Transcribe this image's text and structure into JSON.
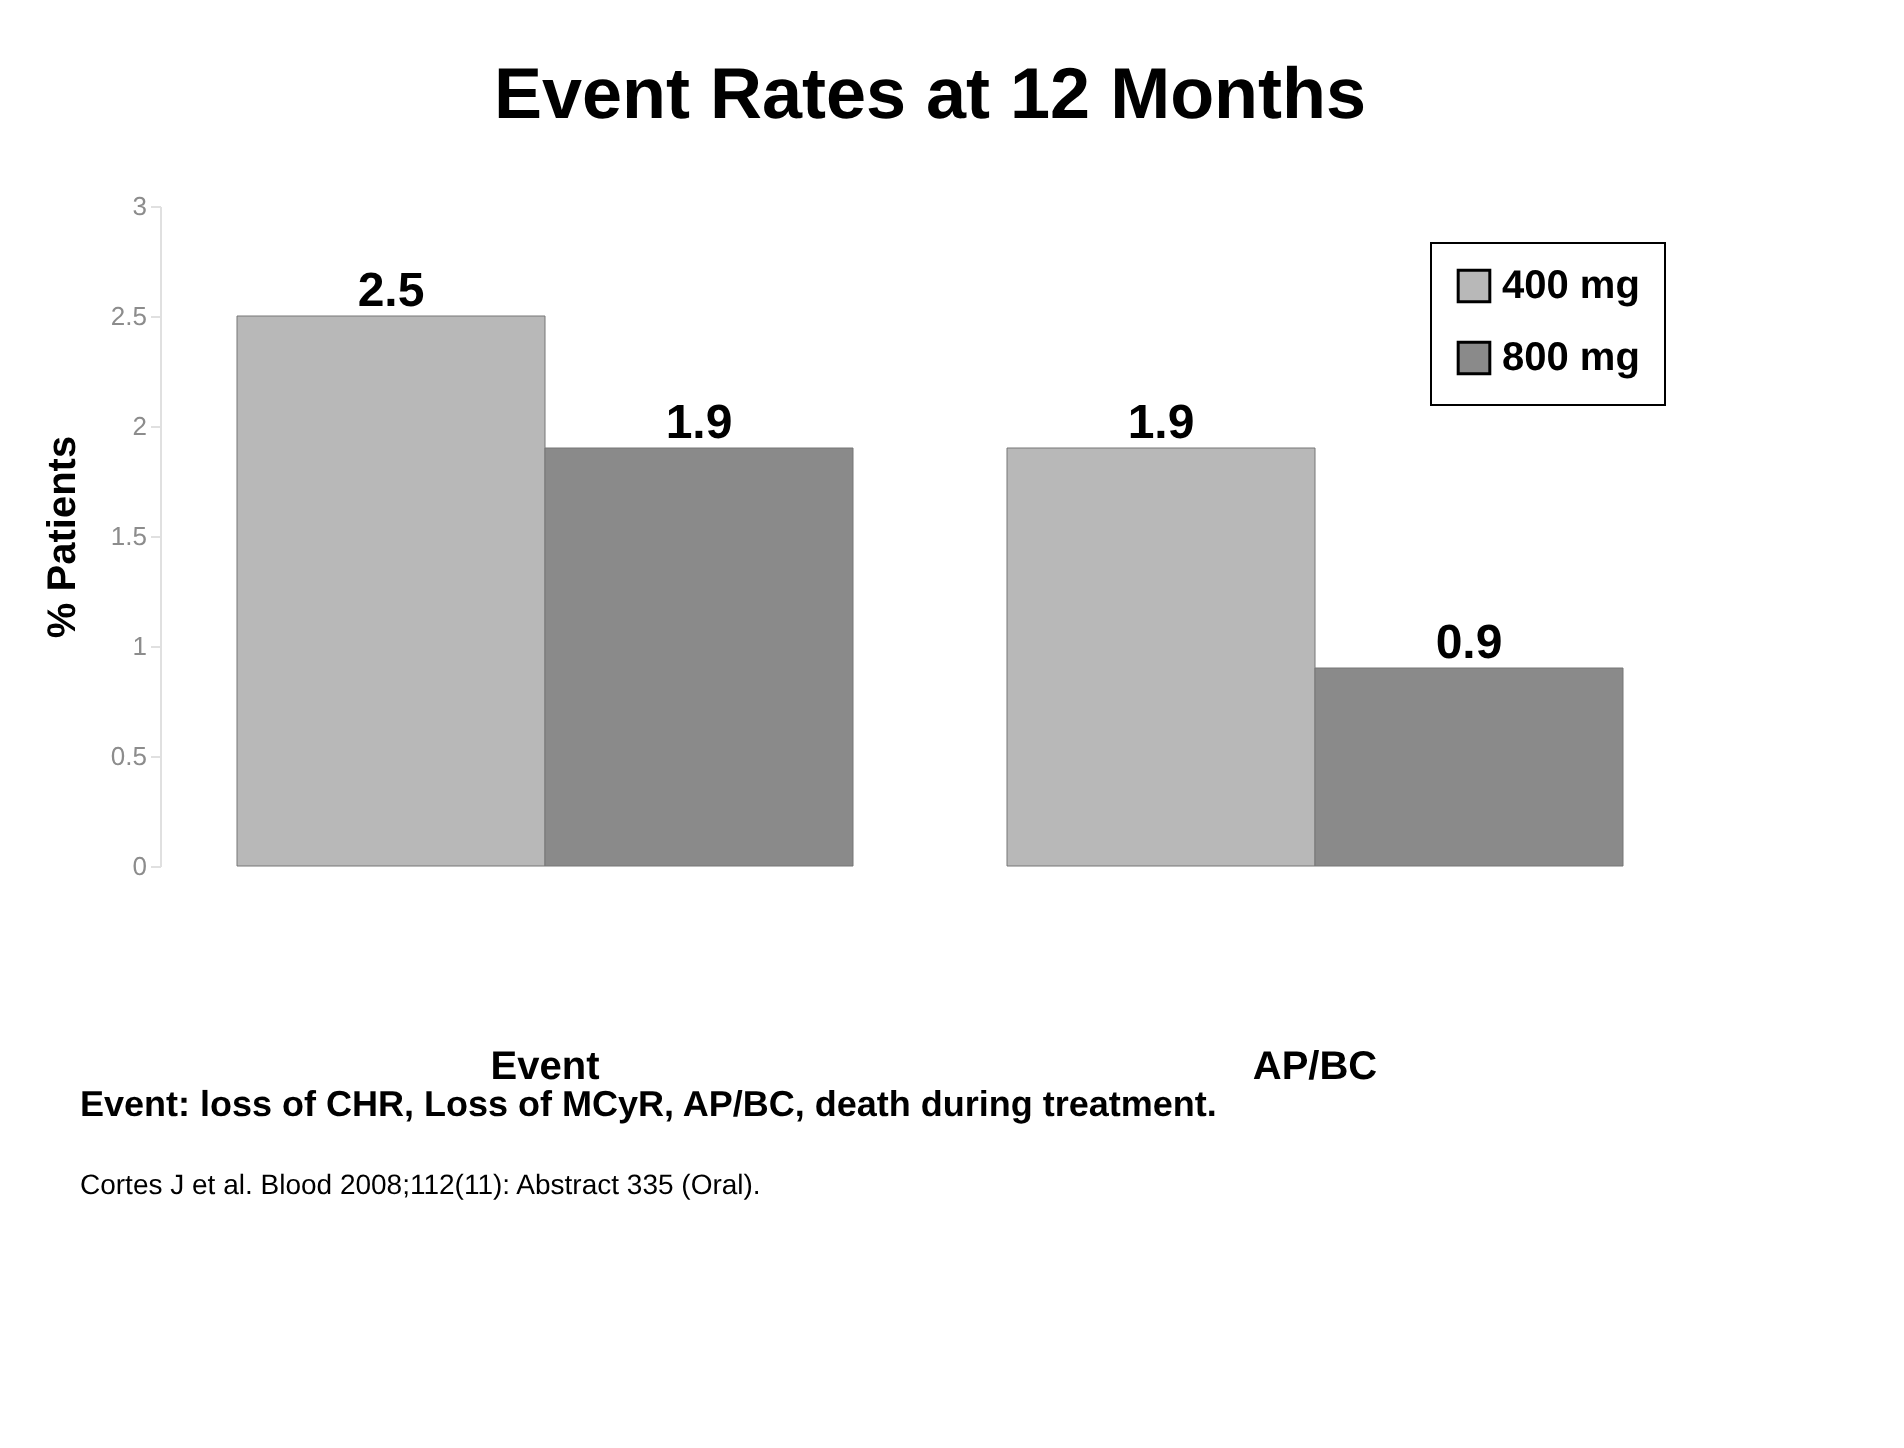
{
  "chart_data": {
    "type": "bar",
    "title": "Event Rates at 12 Months",
    "ylabel": "% Patients",
    "categories": [
      "Event",
      "AP/BC"
    ],
    "series": [
      {
        "name": "400 mg",
        "color": "#b8b8b8",
        "values": [
          2.5,
          1.9
        ]
      },
      {
        "name": "800 mg",
        "color": "#8a8a8a",
        "values": [
          1.9,
          0.9
        ]
      }
    ],
    "ylim": [
      0,
      3
    ],
    "yticks": [
      0,
      0.5,
      1,
      1.5,
      2,
      2.5,
      3
    ],
    "grid": false,
    "legend": "top right",
    "data_labels": true,
    "annotations": [
      "Event: loss of CHR, Loss of MCyR, AP/BC, death during treatment.",
      "Cortes J et al. Blood 2008;112(11): Abstract 335 (Oral)."
    ]
  }
}
